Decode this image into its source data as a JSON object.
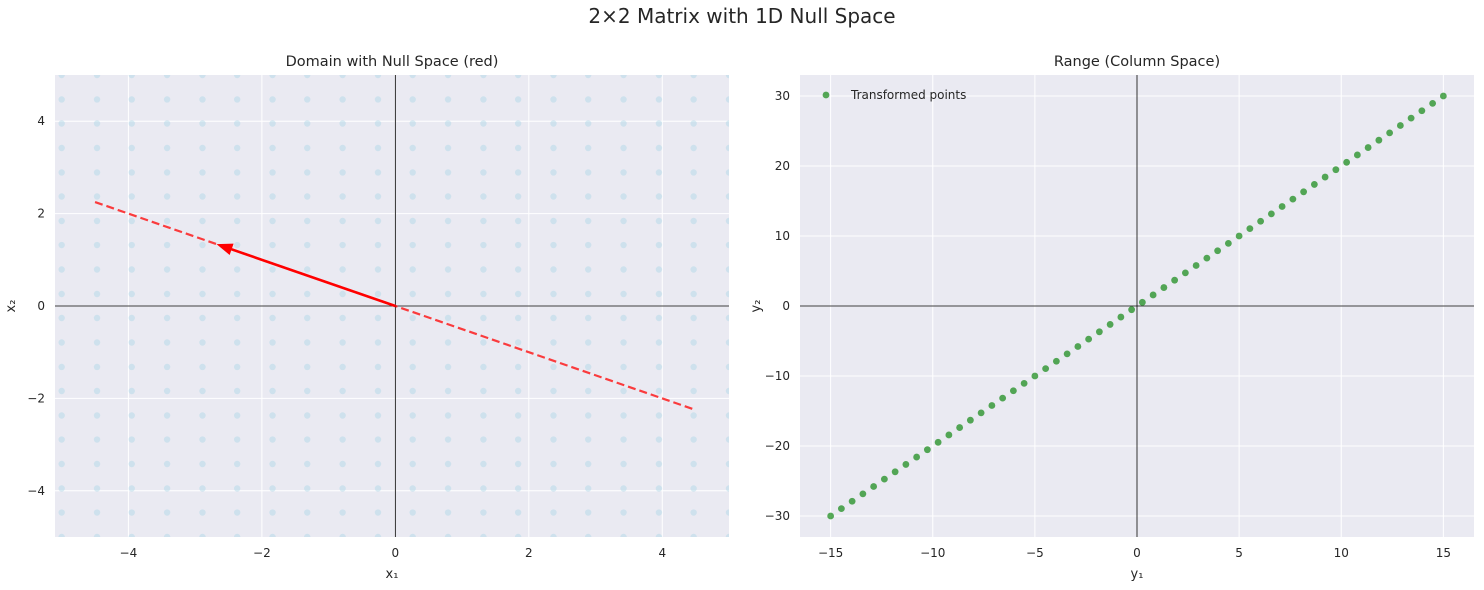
{
  "figure_title": "2×2 Matrix with 1D Null Space",
  "chart_data": [
    {
      "type": "scatter",
      "title": "Domain with Null Space (red)",
      "xlabel": "x₁",
      "ylabel": "x₂",
      "xlim": [
        -5.1,
        5.0
      ],
      "ylim": [
        -5.0,
        5.0
      ],
      "xticks": [
        -4,
        -2,
        0,
        2,
        4
      ],
      "yticks": [
        -4,
        -2,
        0,
        2,
        4
      ],
      "xtick_labels": [
        "−4",
        "−2",
        "0",
        "2",
        "4"
      ],
      "ytick_labels": [
        "−4",
        "−2",
        "0",
        "2",
        "4"
      ],
      "grid": true,
      "grid_points": {
        "x_values": [
          -5.0,
          -4.47,
          -3.95,
          -3.42,
          -2.89,
          -2.37,
          -1.84,
          -1.32,
          -0.79,
          -0.26,
          0.26,
          0.79,
          1.32,
          1.84,
          2.37,
          2.89,
          3.42,
          3.95,
          4.47,
          5.0
        ],
        "y_values": [
          -5.0,
          -4.47,
          -3.95,
          -3.42,
          -2.89,
          -2.37,
          -1.84,
          -1.32,
          -0.79,
          -0.26,
          0.26,
          0.79,
          1.32,
          1.84,
          2.37,
          2.89,
          3.42,
          3.95,
          4.47,
          5.0
        ],
        "color": "#add8e6"
      },
      "null_space_line": {
        "x": [
          -4.5,
          4.5
        ],
        "y": [
          2.25,
          -2.25
        ],
        "color": "#ff0000",
        "style": "dashed"
      },
      "null_space_vector": {
        "from": [
          0,
          0
        ],
        "to": [
          -2.68,
          1.34
        ],
        "color": "#ff0000"
      }
    },
    {
      "type": "scatter",
      "title": "Range (Column Space)",
      "xlabel": "y₁",
      "ylabel": "y₂",
      "xlim": [
        -16.5,
        16.5
      ],
      "ylim": [
        -33,
        33
      ],
      "xticks": [
        -15,
        -10,
        -5,
        0,
        5,
        10,
        15
      ],
      "yticks": [
        -30,
        -20,
        -10,
        0,
        10,
        20,
        30
      ],
      "xtick_labels": [
        "−15",
        "−10",
        "−5",
        "0",
        "5",
        "10",
        "15"
      ],
      "ytick_labels": [
        "−30",
        "−20",
        "−10",
        "0",
        "10",
        "20",
        "30"
      ],
      "grid": true,
      "legend": {
        "placement": "top-left",
        "entries": [
          "Transformed points"
        ]
      },
      "series": [
        {
          "name": "Transformed points",
          "color": "#008000",
          "x_start": -15,
          "x_end": 15,
          "x_count": 58,
          "relation": "y = 2x"
        }
      ]
    }
  ]
}
